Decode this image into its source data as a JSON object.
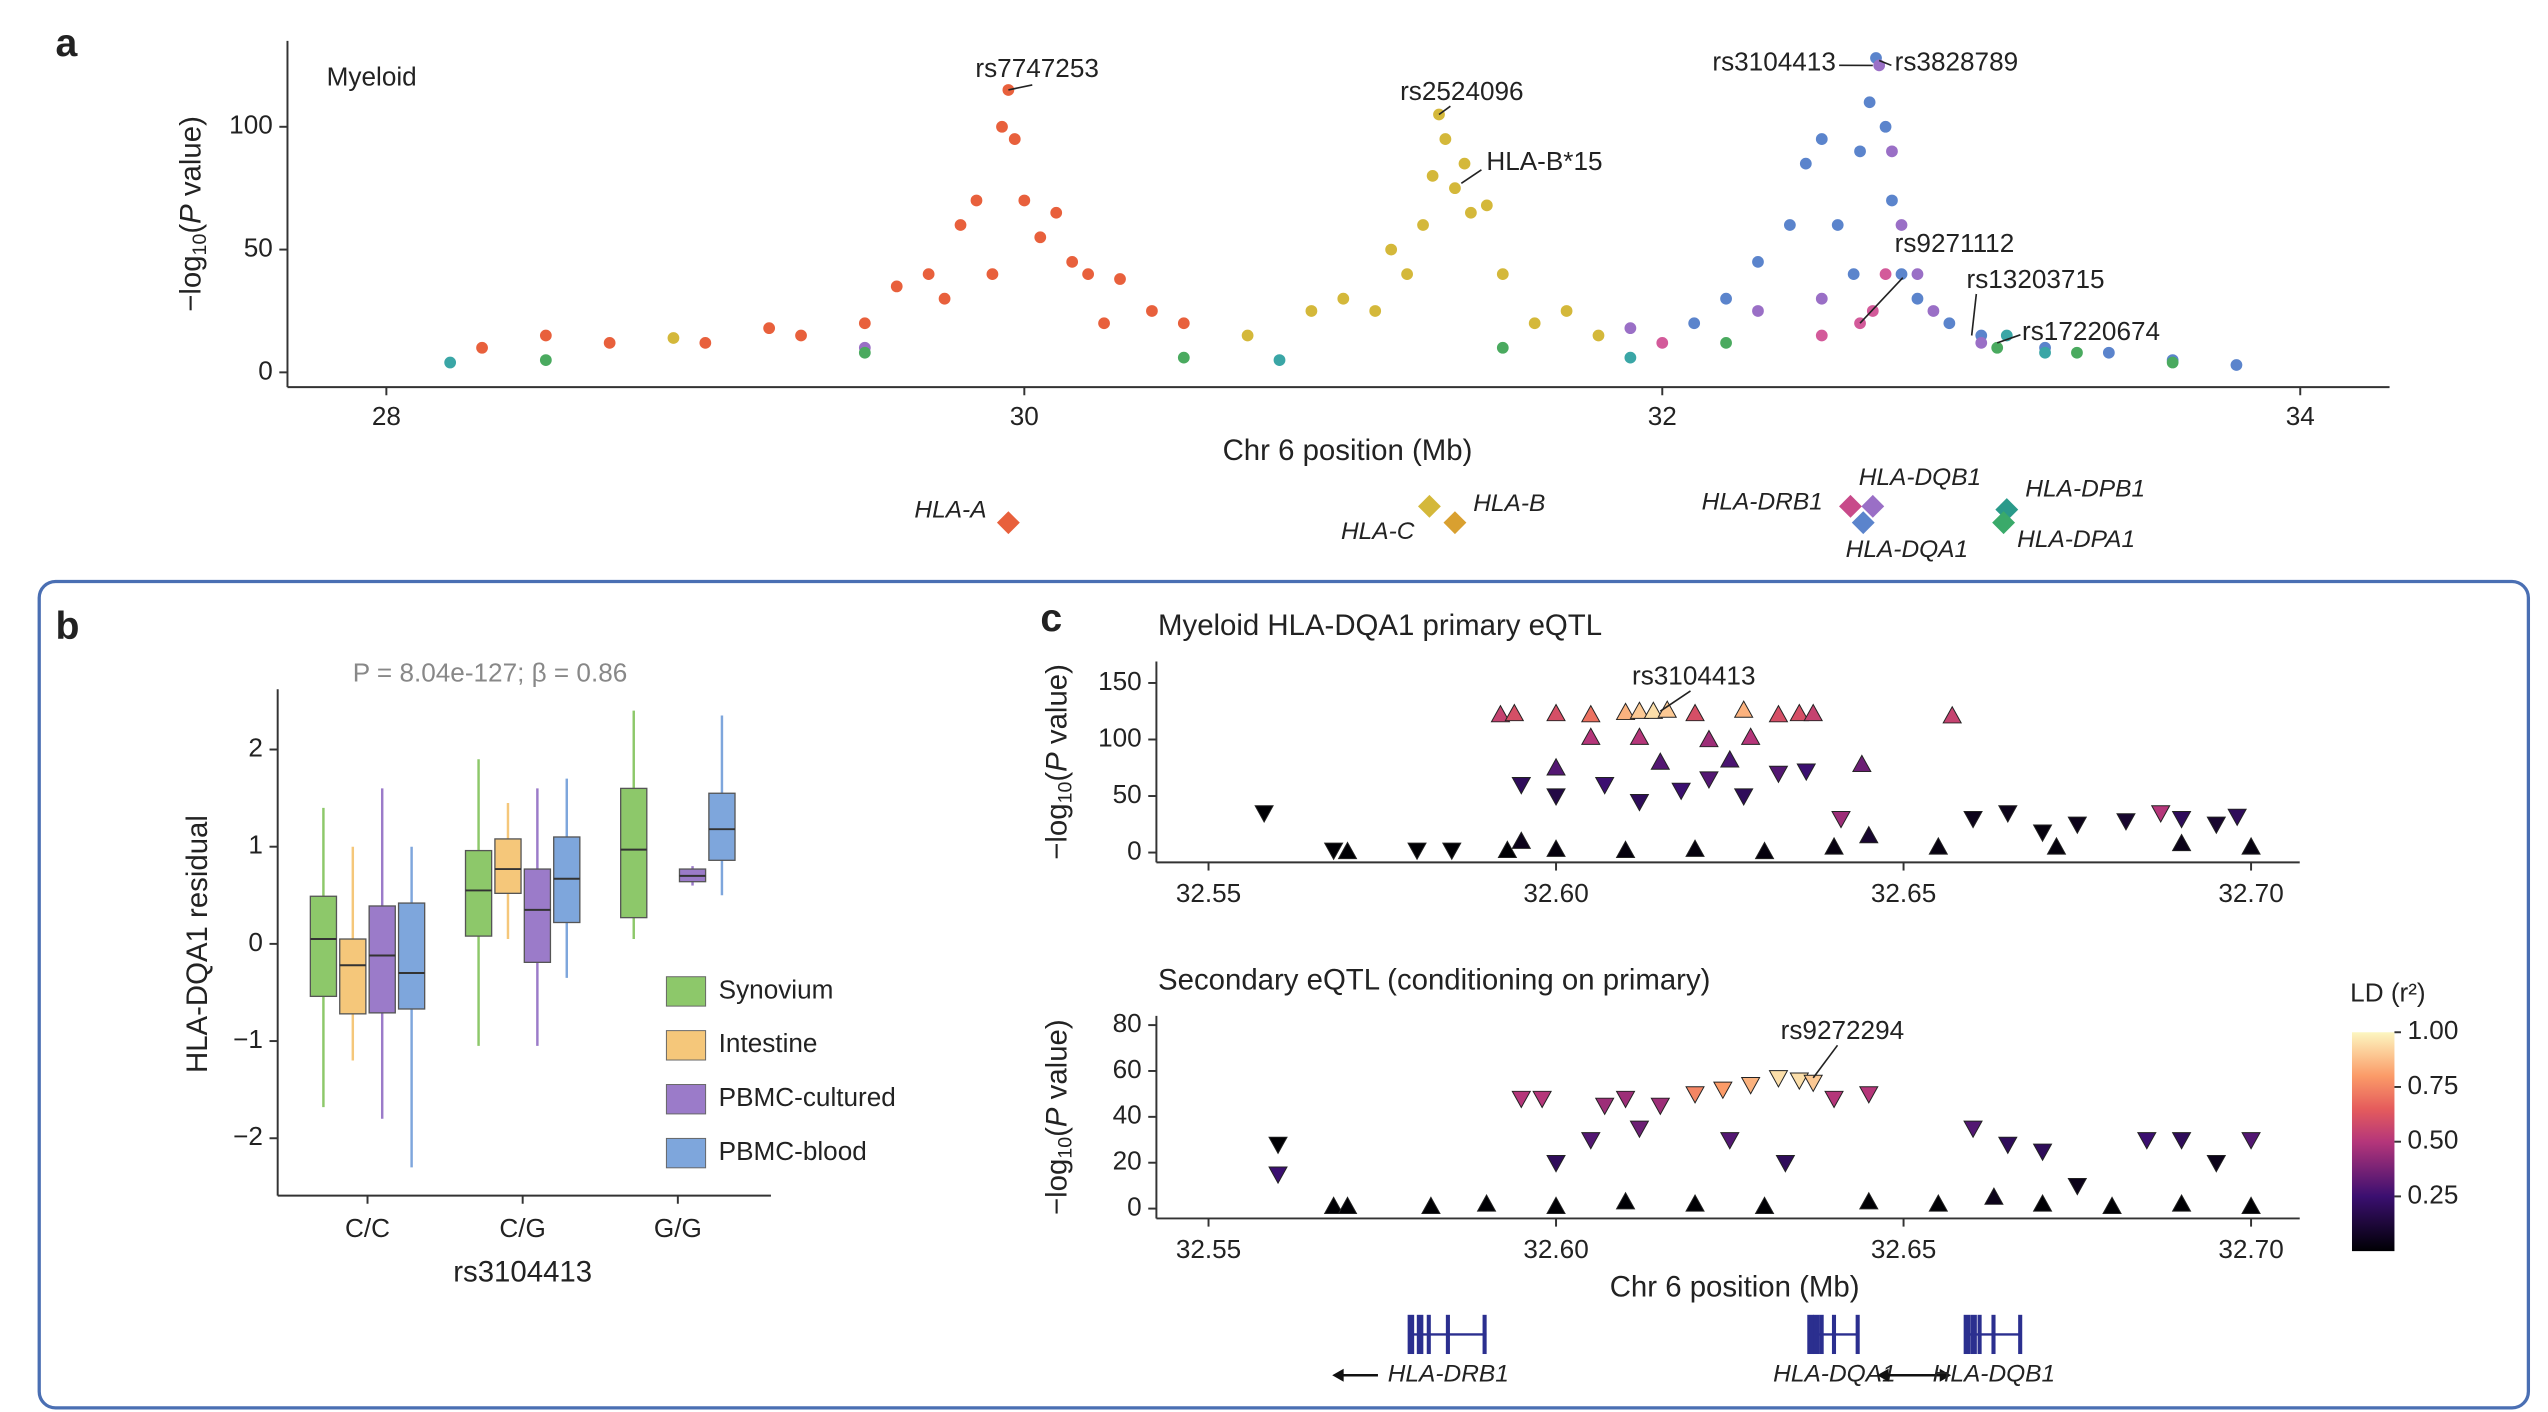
{
  "chart_data": [
    {
      "type": "scatter",
      "panel": "a",
      "title": "Myeloid",
      "x_label": "Chr 6 position (Mb)",
      "y_label": {
        "pre": "−log",
        "sub": "10",
        "open": "(",
        "italic": "P",
        "post": " value)"
      },
      "xlim": [
        27.69,
        34.28
      ],
      "ylim": [
        -6,
        135
      ],
      "xticks": [
        28,
        30,
        32,
        34
      ],
      "yticks": [
        0,
        50,
        100
      ],
      "series": [
        {
          "color": "#e8603c",
          "x": [
            29.0,
            29.3,
            29.5,
            29.6,
            29.7,
            29.8,
            29.85,
            29.9,
            29.93,
            29.95,
            29.97,
            30.0,
            30.05,
            30.1,
            30.15,
            30.2,
            30.3,
            30.4,
            30.5,
            28.3,
            28.5,
            28.7,
            29.2,
            29.75,
            30.25
          ],
          "values": [
            12,
            15,
            20,
            35,
            40,
            60,
            70,
            40,
            100,
            115,
            95,
            70,
            55,
            65,
            45,
            40,
            38,
            25,
            20,
            10,
            15,
            12,
            18,
            30,
            20
          ]
        },
        {
          "color": "#d4b83a",
          "x": [
            30.9,
            31.0,
            31.1,
            31.15,
            31.2,
            31.25,
            31.28,
            31.3,
            31.32,
            31.35,
            31.38,
            31.4,
            31.45,
            31.5,
            31.6,
            31.7,
            31.8,
            30.7,
            28.9
          ],
          "values": [
            25,
            30,
            25,
            50,
            40,
            60,
            80,
            105,
            95,
            75,
            85,
            65,
            68,
            40,
            20,
            25,
            15,
            15,
            14
          ]
        },
        {
          "color": "#5b84cc",
          "x": [
            32.1,
            32.2,
            32.3,
            32.4,
            32.45,
            32.5,
            32.55,
            32.6,
            32.62,
            32.65,
            32.67,
            32.7,
            32.72,
            32.75,
            32.8,
            32.9,
            33.0,
            33.2,
            33.4,
            33.6,
            33.8
          ],
          "values": [
            20,
            30,
            45,
            60,
            85,
            95,
            60,
            40,
            90,
            110,
            128,
            100,
            70,
            40,
            30,
            20,
            15,
            10,
            8,
            5,
            3
          ]
        },
        {
          "color": "#9a6fc6",
          "x": [
            32.3,
            32.5,
            32.68,
            32.72,
            32.75,
            32.8,
            32.85,
            33.0,
            31.9,
            29.5
          ],
          "values": [
            25,
            30,
            125,
            90,
            60,
            40,
            25,
            12,
            18,
            10
          ]
        },
        {
          "color": "#d35a9a",
          "x": [
            32.62,
            32.66,
            32.7,
            32.5,
            32.0
          ],
          "values": [
            20,
            25,
            40,
            15,
            12
          ]
        },
        {
          "color": "#4aaa5f",
          "x": [
            28.5,
            29.5,
            30.5,
            31.5,
            32.2,
            33.05,
            33.3,
            33.6
          ],
          "values": [
            5,
            8,
            6,
            10,
            12,
            10,
            8,
            4
          ]
        },
        {
          "color": "#3aa6a6",
          "x": [
            33.08,
            33.2,
            28.2,
            30.8,
            31.9
          ],
          "values": [
            15,
            8,
            4,
            5,
            6
          ]
        }
      ],
      "annotations": [
        {
          "text": "rs7747253",
          "x": 29.95,
          "y": 115
        },
        {
          "text": "rs2524096",
          "x": 31.3,
          "y": 105
        },
        {
          "text": "HLA-B*15",
          "x": 31.37,
          "y": 77
        },
        {
          "text": "rs3104413",
          "x": 32.66,
          "y": 125
        },
        {
          "text": "rs3828789",
          "x": 32.68,
          "y": 127
        },
        {
          "text": "rs9271112",
          "x": 32.62,
          "y": 20
        },
        {
          "text": "rs13203715",
          "x": 32.97,
          "y": 15
        },
        {
          "text": "rs17220674",
          "x": 33.05,
          "y": 12
        }
      ],
      "genes": [
        {
          "label": "HLA-A",
          "position": 29.95,
          "color": "#e8603c"
        },
        {
          "label": "HLA-C",
          "position": 31.27,
          "color": "#d4b83a"
        },
        {
          "label": "HLA-B",
          "position": 31.35,
          "color": "#d9a030"
        },
        {
          "label": "HLA-DRB1",
          "position": 32.59,
          "color": "#c84a8a"
        },
        {
          "label": "HLA-DQB1",
          "position": 32.66,
          "color": "#9a6fc6"
        },
        {
          "label": "HLA-DQA1",
          "position": 32.63,
          "color": "#5b84cc"
        },
        {
          "label": "HLA-DPB1",
          "position": 33.08,
          "color": "#2a9a8a"
        },
        {
          "label": "HLA-DPA1",
          "position": 33.07,
          "color": "#3aaa6a"
        }
      ]
    },
    {
      "type": "box",
      "panel": "b",
      "annotation": "P = 8.04e-127; β = 0.86",
      "x_label": "rs3104413",
      "y_label": "HLA-DQA1 residual",
      "categories": [
        "C/C",
        "C/G",
        "G/G"
      ],
      "ylim": [
        -2.59,
        2.62
      ],
      "yticks": [
        {
          "value": -2,
          "label": "−2"
        },
        {
          "value": -1,
          "label": "−1"
        },
        0,
        1,
        2
      ],
      "series": [
        {
          "name": "Synovium",
          "color": "#8dc86a",
          "stats": [
            [
              -1.68,
              -0.54,
              0.05,
              0.49,
              1.4
            ],
            [
              -1.05,
              0.08,
              0.55,
              0.96,
              1.9
            ],
            [
              0.05,
              0.27,
              0.97,
              1.6,
              2.4
            ]
          ]
        },
        {
          "name": "Intestine",
          "color": "#f5c77a",
          "stats": [
            [
              -1.2,
              -0.72,
              -0.22,
              0.05,
              1.0
            ],
            [
              0.05,
              0.52,
              0.77,
              1.08,
              1.45
            ],
            null
          ]
        },
        {
          "name": "PBMC-cultured",
          "color": "#9b7bc9",
          "stats": [
            [
              -1.8,
              -0.71,
              -0.12,
              0.39,
              1.6
            ],
            [
              -1.05,
              -0.19,
              0.35,
              0.77,
              1.6
            ],
            [
              0.6,
              0.64,
              0.7,
              0.77,
              0.8
            ]
          ]
        },
        {
          "name": "PBMC-blood",
          "color": "#7ea6dc",
          "stats": [
            [
              -2.3,
              -0.67,
              -0.3,
              0.42,
              1.0
            ],
            [
              -0.35,
              0.22,
              0.67,
              1.1,
              1.7
            ],
            [
              0.5,
              0.86,
              1.18,
              1.55,
              2.35
            ]
          ]
        }
      ]
    },
    {
      "type": "ld_scatter",
      "panel": "c",
      "title": "Myeloid HLA-DQA1 primary eQTL",
      "y_label": {
        "pre": "−log",
        "sub": "10",
        "open": "(",
        "italic": "P",
        "post": " value)"
      },
      "colormap": "magma",
      "xlim": [
        32.5425,
        32.707
      ],
      "ylim": [
        -8.7,
        169
      ],
      "xticks": [
        32.55,
        {
          "value": 32.6,
          "label": "32.60"
        },
        32.65,
        {
          "value": 32.7,
          "label": "32.70"
        }
      ],
      "yticks": [
        0,
        50,
        100,
        150
      ],
      "series": [
        {
          "marker": "up",
          "x": [
            32.592,
            32.594,
            32.6,
            32.605,
            32.61,
            32.612,
            32.614,
            32.616,
            32.62,
            32.627,
            32.632,
            32.635,
            32.637,
            32.657,
            32.605,
            32.612,
            32.622,
            32.628,
            32.6,
            32.615,
            32.625,
            32.644,
            32.595,
            32.6,
            32.61,
            32.62,
            32.63,
            32.64,
            32.645,
            32.655,
            32.672,
            32.69,
            32.7,
            32.57,
            32.593
          ],
          "values": [
            122,
            123,
            123,
            122,
            124,
            125,
            125,
            126,
            123,
            126,
            122,
            123,
            123,
            121,
            102,
            102,
            100,
            102,
            75,
            80,
            82,
            78,
            10,
            3,
            2,
            3,
            1,
            5,
            15,
            5,
            5,
            8,
            5,
            1,
            2
          ],
          "ld": [
            0.55,
            0.6,
            0.6,
            0.7,
            0.85,
            0.9,
            0.95,
            0.9,
            0.6,
            0.85,
            0.6,
            0.6,
            0.55,
            0.55,
            0.5,
            0.5,
            0.45,
            0.5,
            0.3,
            0.3,
            0.28,
            0.35,
            0.05,
            0.02,
            0.02,
            0.02,
            0.02,
            0.03,
            0.1,
            0.03,
            0.02,
            0.05,
            0.03,
            0,
            0
          ]
        },
        {
          "marker": "down",
          "x": [
            32.558,
            32.568,
            32.58,
            32.585,
            32.595,
            32.6,
            32.607,
            32.612,
            32.618,
            32.622,
            32.627,
            32.632,
            32.636,
            32.641,
            32.66,
            32.665,
            32.675,
            32.682,
            32.687,
            32.69,
            32.695,
            32.698,
            32.67
          ],
          "values": [
            35,
            2,
            2,
            2,
            60,
            50,
            60,
            45,
            55,
            65,
            50,
            70,
            72,
            30,
            30,
            35,
            25,
            28,
            35,
            30,
            25,
            32,
            18
          ],
          "ld": [
            0,
            0,
            0,
            0,
            0.2,
            0.15,
            0.25,
            0.2,
            0.25,
            0.3,
            0.2,
            0.3,
            0.25,
            0.45,
            0.05,
            0.05,
            0.05,
            0.1,
            0.5,
            0.2,
            0.1,
            0.2,
            0.02
          ]
        }
      ],
      "annotations": [
        {
          "text": "rs3104413",
          "x": 32.615,
          "y": 125
        }
      ]
    },
    {
      "type": "ld_scatter",
      "panel": "c2",
      "title": "Secondary eQTL (conditioning on primary)",
      "x_label": "Chr 6 position (Mb)",
      "y_label": {
        "pre": "−log",
        "sub": "10",
        "open": "(",
        "italic": "P",
        "post": " value)"
      },
      "colormap": "magma",
      "xlim": [
        32.5425,
        32.707
      ],
      "ylim": [
        -4.3,
        84
      ],
      "xticks": [
        32.55,
        {
          "value": 32.6,
          "label": "32.60"
        },
        32.65,
        {
          "value": 32.7,
          "label": "32.70"
        }
      ],
      "yticks": [
        0,
        20,
        40,
        60,
        80
      ],
      "series": [
        {
          "marker": "down",
          "x": [
            32.56,
            32.56,
            32.595,
            32.598,
            32.607,
            32.61,
            32.615,
            32.62,
            32.624,
            32.628,
            32.632,
            32.635,
            32.637,
            32.64,
            32.645,
            32.612,
            32.605,
            32.6,
            32.625,
            32.633,
            32.66,
            32.665,
            32.67,
            32.685,
            32.69,
            32.7,
            32.695,
            32.675
          ],
          "values": [
            28,
            15,
            48,
            48,
            45,
            48,
            45,
            50,
            52,
            54,
            57,
            56,
            55,
            48,
            50,
            35,
            30,
            20,
            30,
            20,
            35,
            28,
            25,
            30,
            30,
            30,
            20,
            10
          ],
          "ld": [
            0,
            0.25,
            0.5,
            0.5,
            0.45,
            0.45,
            0.45,
            0.75,
            0.8,
            0.85,
            0.95,
            0.95,
            0.9,
            0.5,
            0.5,
            0.35,
            0.3,
            0.2,
            0.3,
            0.2,
            0.3,
            0.2,
            0.2,
            0.25,
            0.2,
            0.3,
            0.05,
            0.05
          ]
        },
        {
          "marker": "up",
          "x": [
            32.568,
            32.57,
            32.582,
            32.59,
            32.6,
            32.61,
            32.62,
            32.63,
            32.645,
            32.655,
            32.663,
            32.67,
            32.68,
            32.69,
            32.7
          ],
          "values": [
            1,
            1,
            1,
            2,
            1,
            3,
            2,
            1,
            3,
            2,
            5,
            2,
            1,
            2,
            1
          ],
          "ld": [
            0,
            0,
            0,
            0,
            0,
            0,
            0,
            0,
            0,
            0,
            0.05,
            0,
            0,
            0,
            0
          ]
        }
      ],
      "annotations": [
        {
          "text": "rs9272294",
          "x": 32.637,
          "y": 57
        }
      ],
      "colorbar": {
        "label": "LD (r²)",
        "range": [
          0,
          1
        ],
        "ticks": [
          0.25,
          {
            "value": 0.5,
            "label": "0.50"
          },
          0.75,
          {
            "value": 1,
            "label": "1.00"
          }
        ]
      },
      "genes": [
        {
          "label": "HLA-DRB1",
          "start": 32.579,
          "end": 32.59
        },
        {
          "label": "HLA-DQA1",
          "start": 32.6365,
          "end": 32.6436
        },
        {
          "label": "HLA-DQB1",
          "start": 32.659,
          "end": 32.667
        }
      ]
    }
  ]
}
